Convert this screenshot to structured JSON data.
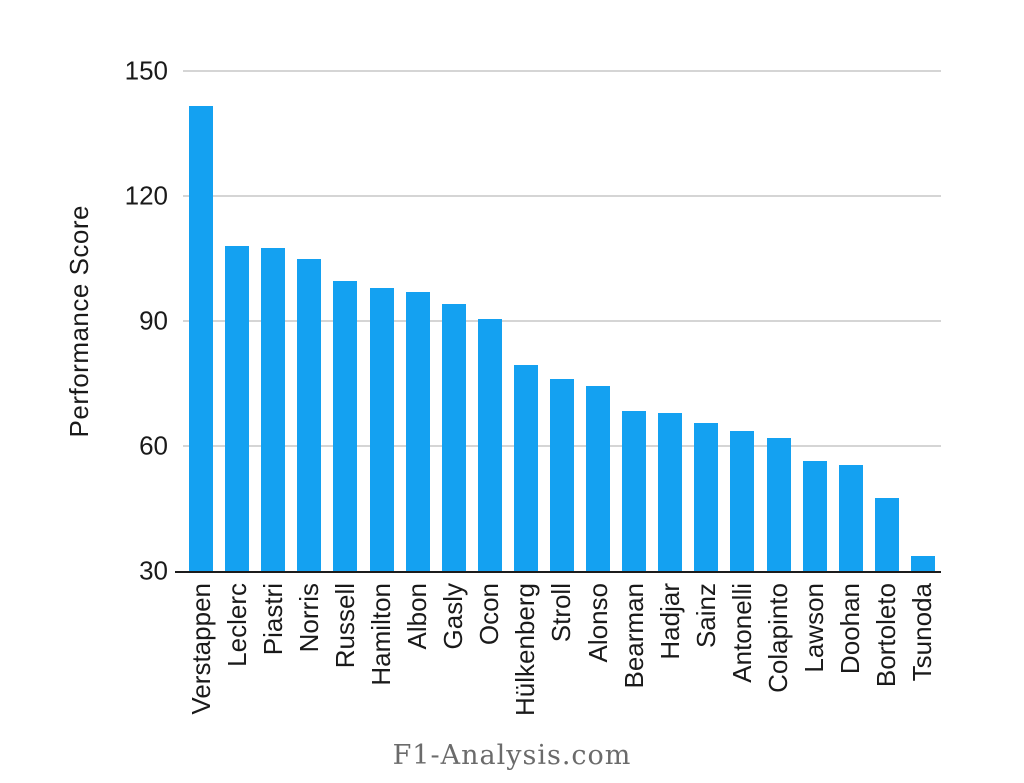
{
  "footer": {
    "brand": "F1-Analysis.com"
  },
  "colors": {
    "bar": "#14A1F1",
    "gridline": "#d5d5d5",
    "axis": "#1c1c1c",
    "text": "#1a1a1a",
    "footer_text": "#6b6b6b"
  },
  "chart_data": {
    "type": "bar",
    "title": "",
    "xlabel": "",
    "ylabel": "Performance Score",
    "ylim": [
      30,
      150
    ],
    "yticks": [
      30,
      60,
      90,
      120,
      150
    ],
    "grid": "horizontal",
    "legend": "none",
    "bar_color": "#14A1F1",
    "categories": [
      "Verstappen",
      "Leclerc",
      "Piastri",
      "Norris",
      "Russell",
      "Hamilton",
      "Albon",
      "Gasly",
      "Ocon",
      "Hülkenberg",
      "Stroll",
      "Alonso",
      "Bearman",
      "Hadjar",
      "Sainz",
      "Antonelli",
      "Colapinto",
      "Lawson",
      "Doohan",
      "Bortoleto",
      "Tsunoda"
    ],
    "values": [
      141.5,
      108,
      107.5,
      105,
      99.5,
      98,
      97,
      94,
      90.5,
      79.5,
      76,
      74.5,
      68.5,
      68,
      65.5,
      63.5,
      62,
      56.5,
      55.5,
      47.5,
      33.5
    ]
  }
}
